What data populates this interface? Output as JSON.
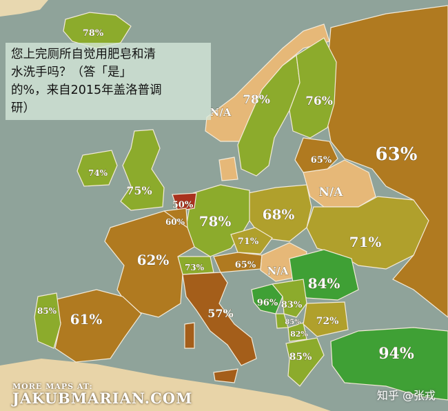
{
  "title": "您上完厕所自觉用肥皂和清水洗手吗？（答「是」的%，来自2015年盖洛普调研）",
  "title_lines": [
    "您上完厕所自觉用肥皂和清",
    "水洗手吗？（答「是」",
    "的%，来自2015年盖洛普调",
    "研）"
  ],
  "footer": {
    "small": "MORE MAPS AT:",
    "big": "JAKUBMARIAN.COM"
  },
  "watermark": "知乎 @张戎",
  "colors": {
    "sea": "#8fa39a",
    "border": "#f3ead8",
    "high_green": "#3fa035",
    "green": "#8cab2c",
    "olive": "#b0a02c",
    "brown": "#b07a20",
    "dark_brown": "#a45e1a",
    "red": "#a9321e",
    "na": "#e6b878"
  },
  "regions": [
    {
      "name": "Iceland",
      "value": "78%"
    },
    {
      "name": "Norway",
      "value": "N/A"
    },
    {
      "name": "Sweden",
      "value": "78%"
    },
    {
      "name": "Finland",
      "value": "76%"
    },
    {
      "name": "Russia",
      "value": "63%"
    },
    {
      "name": "Latvia",
      "value": "65%"
    },
    {
      "name": "Belarus",
      "value": "N/A"
    },
    {
      "name": "Ireland",
      "value": "74%"
    },
    {
      "name": "United Kingdom",
      "value": "75%"
    },
    {
      "name": "Netherlands",
      "value": "50%"
    },
    {
      "name": "Belgium",
      "value": "60%"
    },
    {
      "name": "Germany",
      "value": "78%"
    },
    {
      "name": "Poland",
      "value": "68%"
    },
    {
      "name": "Ukraine",
      "value": "71%"
    },
    {
      "name": "Czech Republic",
      "value": "71%"
    },
    {
      "name": "France",
      "value": "62%"
    },
    {
      "name": "Austria",
      "value": "65%"
    },
    {
      "name": "Hungary",
      "value": "N/A"
    },
    {
      "name": "Switzerland",
      "value": "73%"
    },
    {
      "name": "Romania",
      "value": "84%"
    },
    {
      "name": "Portugal",
      "value": "85%"
    },
    {
      "name": "Spain",
      "value": "61%"
    },
    {
      "name": "Italy",
      "value": "57%"
    },
    {
      "name": "Bosnia",
      "value": "96%"
    },
    {
      "name": "Serbia",
      "value": "83%"
    },
    {
      "name": "Bulgaria",
      "value": "72%"
    },
    {
      "name": "Montenegro",
      "value": "85%"
    },
    {
      "name": "Macedonia",
      "value": "82%"
    },
    {
      "name": "Greece",
      "value": "85%"
    },
    {
      "name": "Turkey",
      "value": "94%"
    }
  ]
}
